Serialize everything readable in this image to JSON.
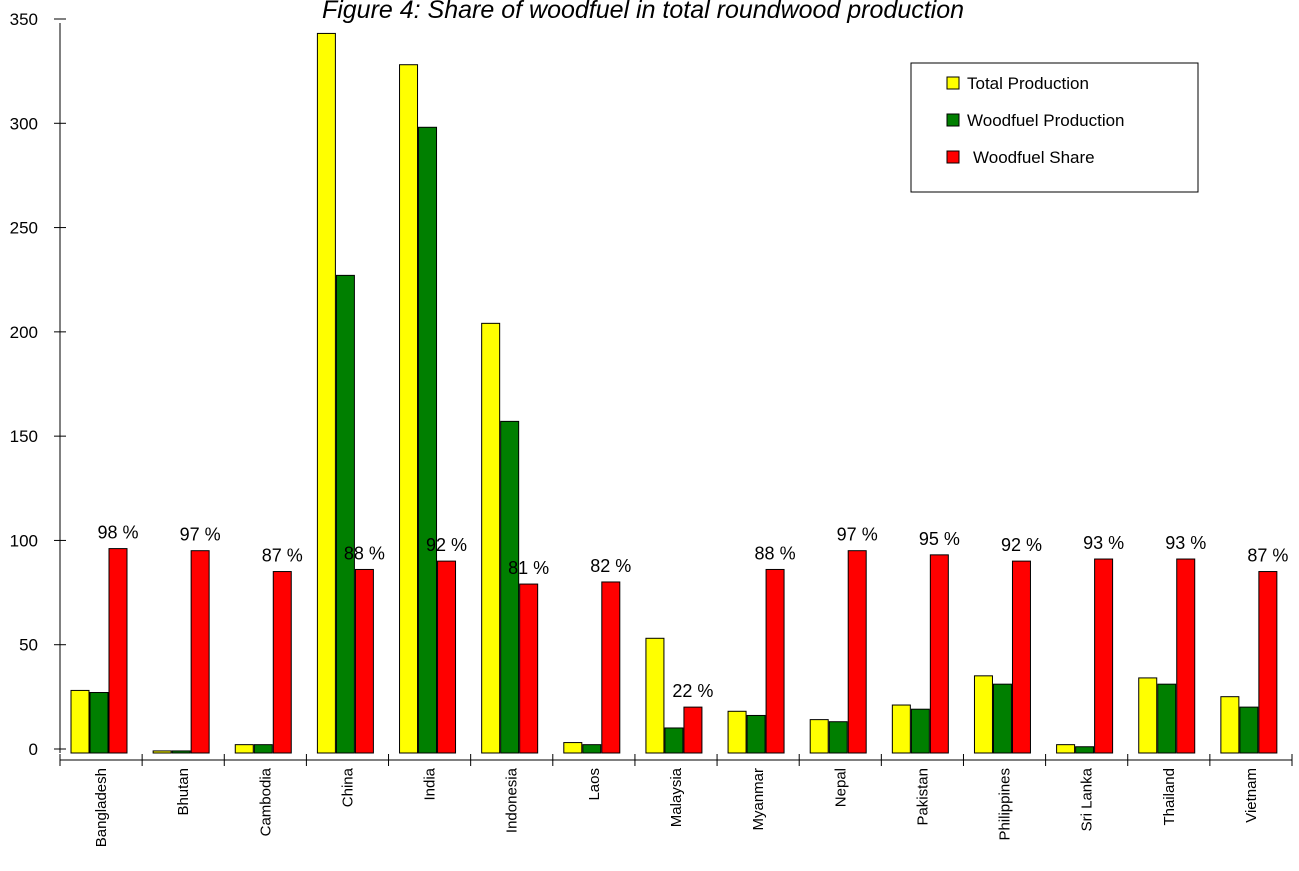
{
  "chart_data": {
    "type": "bar",
    "title": "Figure 4: Share of woodfuel in total roundwood production",
    "xlabel": "",
    "ylabel": "",
    "ylim": [
      0,
      350
    ],
    "y_ticks": [
      "0",
      "50",
      "100",
      "150",
      "200",
      "250",
      "300",
      "350"
    ],
    "grid": false,
    "legend_position": "top-right",
    "categories": [
      "Bangladesh",
      "Bhutan",
      "Cambodia",
      "China",
      "India",
      "Indonesia",
      "Laos",
      "Malaysia",
      "Myanmar",
      "Nepal",
      "Pakistan",
      "Philippines",
      "Sri Lanka",
      "Thailand",
      "Vietnam"
    ],
    "series": [
      {
        "name": "Total Production",
        "color": "#ffff00",
        "values": [
          30,
          1,
          4,
          345,
          330,
          206,
          5,
          55,
          20,
          16,
          23,
          37,
          4,
          36,
          27
        ]
      },
      {
        "name": "Woodfuel Production",
        "color": "#007f00",
        "values": [
          29,
          1,
          4,
          229,
          300,
          159,
          4,
          12,
          18,
          15,
          21,
          33,
          3,
          33,
          22
        ]
      },
      {
        "name": "Woodfuel Share",
        "color": "#ff0000",
        "values": [
          98,
          97,
          87,
          88,
          92,
          81,
          82,
          22,
          88,
          97,
          95,
          92,
          93,
          93,
          87
        ]
      }
    ],
    "share_labels": [
      "98 %",
      "97 %",
      "87 %",
      "88 %",
      "92 %",
      "81 %",
      "82 %",
      "22 %",
      "88 %",
      "97 %",
      "95 %",
      "92 %",
      "93 %",
      "93 %",
      "87 %"
    ]
  }
}
